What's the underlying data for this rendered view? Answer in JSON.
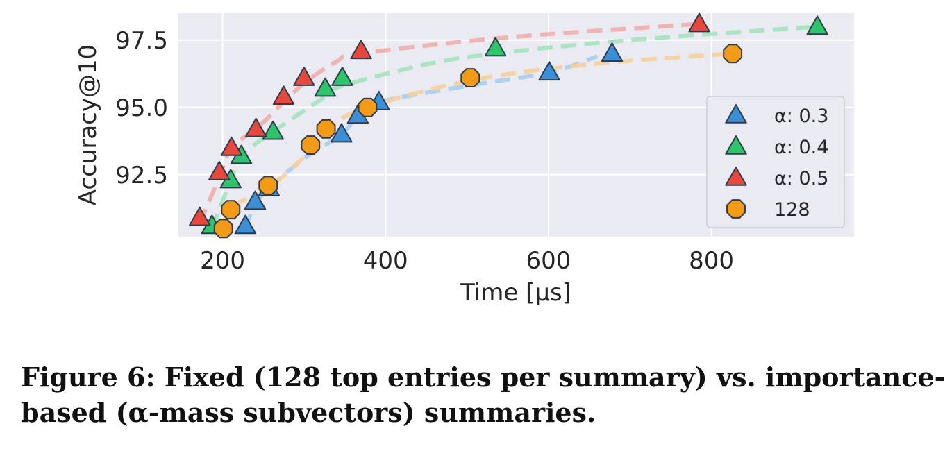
{
  "chart_data": {
    "type": "scatter",
    "xlabel": "Time [μs]",
    "ylabel": "Accuracy@10",
    "xlim": [
      145,
      975
    ],
    "ylim": [
      90.2,
      98.5
    ],
    "xticks": [
      200,
      400,
      600,
      800
    ],
    "yticks": [
      92.5,
      95.0,
      97.5
    ],
    "xtick_labels": [
      "200",
      "400",
      "600",
      "800"
    ],
    "ytick_labels": [
      "92.5",
      "95.0",
      "97.5"
    ],
    "grid": true,
    "legend_position": "lower-right",
    "series": [
      {
        "name": "α: 0.3",
        "marker": "triangle",
        "color": "#3a8fd6",
        "x": [
          228,
          240,
          257,
          346,
          366,
          392,
          601,
          678
        ],
        "y": [
          90.6,
          91.5,
          92.0,
          94.0,
          94.7,
          95.2,
          96.3,
          97.0
        ]
      },
      {
        "name": "α: 0.4",
        "marker": "triangle",
        "color": "#2ec46a",
        "x": [
          187,
          210,
          223,
          262,
          326,
          347,
          535,
          930
        ],
        "y": [
          90.6,
          92.3,
          93.2,
          94.1,
          95.7,
          96.1,
          97.2,
          98.0
        ]
      },
      {
        "name": "α: 0.5",
        "marker": "triangle",
        "color": "#e8473b",
        "x": [
          172,
          196,
          211,
          241,
          275,
          300,
          370,
          785
        ],
        "y": [
          90.9,
          92.6,
          93.5,
          94.2,
          95.4,
          96.1,
          97.1,
          98.1
        ]
      },
      {
        "name": "128",
        "marker": "octagon",
        "color": "#f39a16",
        "x": [
          201,
          210,
          256,
          308,
          327,
          378,
          504,
          826
        ],
        "y": [
          90.5,
          91.2,
          92.1,
          93.6,
          94.2,
          95.0,
          96.1,
          97.0
        ]
      }
    ],
    "trend_curves": [
      {
        "series": "α: 0.3",
        "color": "#a9cdee",
        "x": [
          228,
          240,
          257,
          300,
          346,
          366,
          392,
          500,
          601,
          660
        ],
        "y": [
          90.5,
          91.4,
          92.0,
          93.1,
          94.0,
          94.7,
          95.2,
          95.8,
          96.3,
          96.9
        ]
      },
      {
        "series": "α: 0.4",
        "color": "#a3e3bc",
        "x": [
          187,
          210,
          223,
          262,
          326,
          347,
          450,
          535,
          700,
          930
        ],
        "y": [
          90.5,
          92.3,
          93.2,
          94.1,
          95.4,
          95.8,
          96.6,
          97.0,
          97.5,
          98.0
        ]
      },
      {
        "series": "α: 0.5",
        "color": "#f0aeaa",
        "x": [
          172,
          196,
          211,
          241,
          275,
          300,
          340,
          370,
          550,
          785
        ],
        "y": [
          90.7,
          92.4,
          93.5,
          94.2,
          95.2,
          95.9,
          96.7,
          97.0,
          97.6,
          98.1
        ]
      },
      {
        "series": "128",
        "color": "#f6cf9a",
        "x": [
          201,
          210,
          256,
          308,
          327,
          378,
          504,
          650,
          826
        ],
        "y": [
          90.6,
          91.3,
          92.0,
          93.4,
          94.2,
          95.0,
          96.0,
          96.6,
          97.0
        ]
      }
    ],
    "colors": {
      "plot_background": "#eaeaf2",
      "grid": "#ffffff",
      "marker_edge": "#2e3b4e"
    }
  },
  "caption": {
    "line1": "Figure 6: Fixed (128 top entries per summary) vs. importance-",
    "line2": "based (α-mass subvectors) summaries."
  }
}
